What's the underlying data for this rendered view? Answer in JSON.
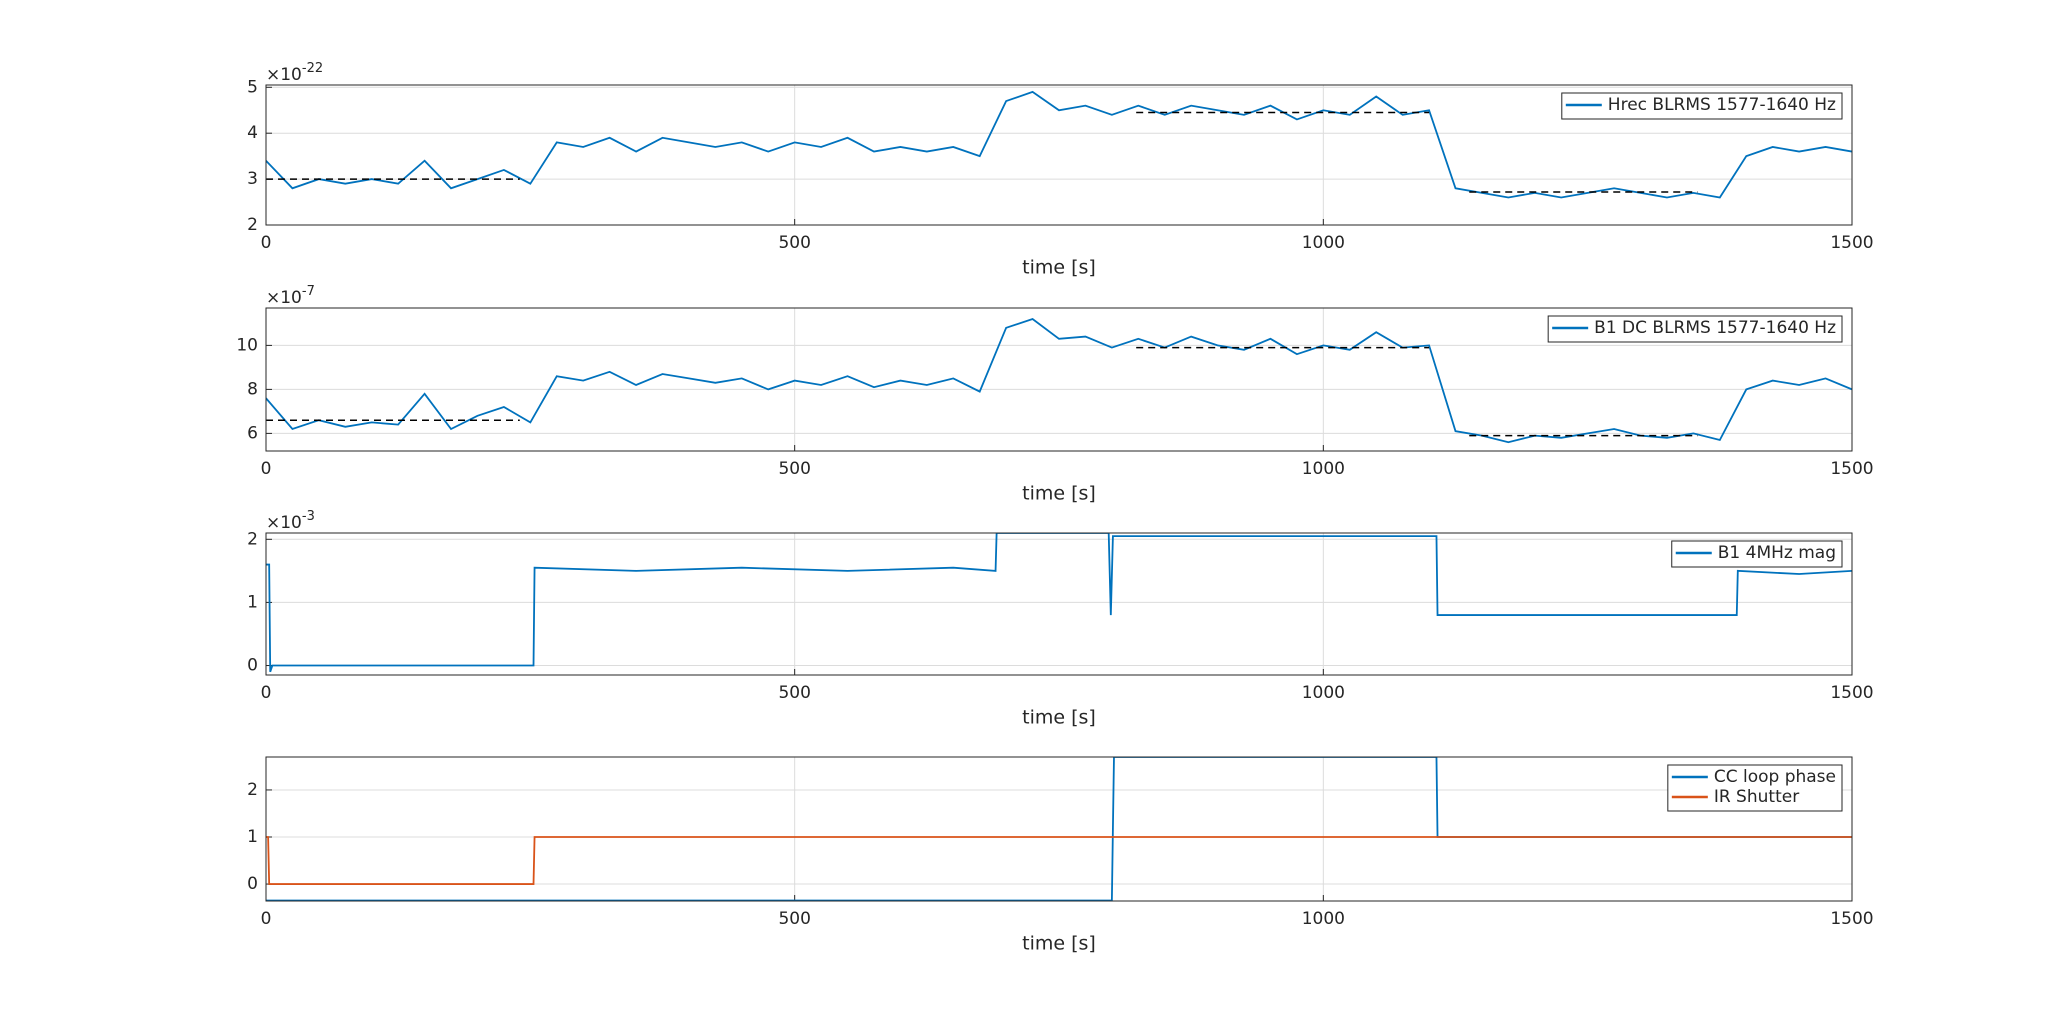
{
  "chart_data": [
    {
      "type": "line",
      "xlabel": "time [s]",
      "xlim": [
        0,
        1500
      ],
      "xticks": [
        0,
        500,
        1000,
        1500
      ],
      "ylim": [
        2,
        5.05
      ],
      "yticks": [
        2,
        3,
        4,
        5
      ],
      "grid": true,
      "legend": "top-right",
      "y_multiplier": {
        "base": "×10",
        "exponent": "-22"
      },
      "series": [
        {
          "name": "Hrec BLRMS 1577-1640 Hz",
          "color": "#0072bd",
          "x": [
            0,
            25,
            50,
            75,
            100,
            125,
            150,
            175,
            200,
            225,
            250,
            275,
            300,
            325,
            350,
            375,
            400,
            425,
            450,
            475,
            500,
            525,
            550,
            575,
            600,
            625,
            650,
            675,
            700,
            725,
            750,
            775,
            800,
            825,
            850,
            875,
            900,
            925,
            950,
            975,
            1000,
            1025,
            1050,
            1075,
            1100,
            1125,
            1150,
            1175,
            1200,
            1225,
            1250,
            1275,
            1300,
            1325,
            1350,
            1375,
            1400,
            1425,
            1450,
            1475,
            1500
          ],
          "values": [
            3.4,
            2.8,
            3.0,
            2.9,
            3.0,
            2.9,
            3.4,
            2.8,
            3.0,
            3.2,
            2.9,
            3.8,
            3.7,
            3.9,
            3.6,
            3.9,
            3.8,
            3.7,
            3.8,
            3.6,
            3.8,
            3.7,
            3.9,
            3.6,
            3.7,
            3.6,
            3.7,
            3.5,
            4.7,
            4.9,
            4.5,
            4.6,
            4.4,
            4.6,
            4.4,
            4.6,
            4.5,
            4.4,
            4.6,
            4.3,
            4.5,
            4.4,
            4.8,
            4.4,
            4.5,
            2.8,
            2.7,
            2.6,
            2.7,
            2.6,
            2.7,
            2.8,
            2.7,
            2.6,
            2.7,
            2.6,
            3.5,
            3.7,
            3.6,
            3.7,
            3.6
          ]
        },
        {
          "color": "#000000",
          "dashed": true,
          "x": [
            0,
            240,
            530,
            823,
            1100,
            1120,
            1138,
            1354
          ],
          "values": [
            3.0,
            3.0,
            null,
            4.45,
            4.45,
            null,
            2.72,
            2.72
          ]
        }
      ]
    },
    {
      "type": "line",
      "xlabel": "time [s]",
      "xlim": [
        0,
        1500
      ],
      "xticks": [
        0,
        500,
        1000,
        1500
      ],
      "ylim": [
        5.2,
        11.7
      ],
      "yticks": [
        6,
        8,
        10
      ],
      "grid": true,
      "legend": "top-right",
      "y_multiplier": {
        "base": "×10",
        "exponent": "-7"
      },
      "series": [
        {
          "name": "B1 DC BLRMS 1577-1640 Hz",
          "color": "#0072bd",
          "x": [
            0,
            25,
            50,
            75,
            100,
            125,
            150,
            175,
            200,
            225,
            250,
            275,
            300,
            325,
            350,
            375,
            400,
            425,
            450,
            475,
            500,
            525,
            550,
            575,
            600,
            625,
            650,
            675,
            700,
            725,
            750,
            775,
            800,
            825,
            850,
            875,
            900,
            925,
            950,
            975,
            1000,
            1025,
            1050,
            1075,
            1100,
            1125,
            1150,
            1175,
            1200,
            1225,
            1250,
            1275,
            1300,
            1325,
            1350,
            1375,
            1400,
            1425,
            1450,
            1475,
            1500
          ],
          "values": [
            7.6,
            6.2,
            6.6,
            6.3,
            6.5,
            6.4,
            7.8,
            6.2,
            6.8,
            7.2,
            6.5,
            8.6,
            8.4,
            8.8,
            8.2,
            8.7,
            8.5,
            8.3,
            8.5,
            8.0,
            8.4,
            8.2,
            8.6,
            8.1,
            8.4,
            8.2,
            8.5,
            7.9,
            10.8,
            11.2,
            10.3,
            10.4,
            9.9,
            10.3,
            9.9,
            10.4,
            10.0,
            9.8,
            10.3,
            9.6,
            10.0,
            9.8,
            10.6,
            9.9,
            10.0,
            6.1,
            5.9,
            5.6,
            5.9,
            5.8,
            6.0,
            6.2,
            5.9,
            5.8,
            6.0,
            5.7,
            8.0,
            8.4,
            8.2,
            8.5,
            8.0
          ]
        },
        {
          "color": "#000000",
          "dashed": true,
          "x": [
            0,
            240,
            530,
            823,
            1100,
            1120,
            1138,
            1354
          ],
          "values": [
            6.6,
            6.6,
            null,
            9.9,
            9.9,
            null,
            5.9,
            5.9
          ]
        }
      ]
    },
    {
      "type": "line",
      "xlabel": "time [s]",
      "xlim": [
        0,
        1500
      ],
      "xticks": [
        0,
        500,
        1000,
        1500
      ],
      "ylim": [
        -0.15,
        2.1
      ],
      "yticks": [
        0,
        1,
        2
      ],
      "grid": true,
      "legend": "top-right",
      "y_multiplier": {
        "base": "×10",
        "exponent": "-3"
      },
      "series": [
        {
          "name": "B1 4MHz mag",
          "color": "#0072bd",
          "x": [
            0,
            3,
            4,
            6,
            253,
            254,
            350,
            450,
            550,
            650,
            690,
            691,
            797,
            799,
            801,
            1107,
            1108,
            1391,
            1392,
            1450,
            1500
          ],
          "values": [
            1.6,
            1.6,
            -0.1,
            0.0,
            0.0,
            1.55,
            1.5,
            1.55,
            1.5,
            1.55,
            1.5,
            2.1,
            2.1,
            0.8,
            2.05,
            2.05,
            0.8,
            0.8,
            1.5,
            1.45,
            1.5
          ]
        }
      ]
    },
    {
      "type": "line",
      "xlabel": "time [s]",
      "xlim": [
        0,
        1500
      ],
      "xticks": [
        0,
        500,
        1000,
        1500
      ],
      "ylim": [
        -0.36,
        2.7
      ],
      "yticks": [
        0,
        1,
        2
      ],
      "grid": true,
      "legend": "top-right",
      "series": [
        {
          "name": "CC loop phase",
          "color": "#0072bd",
          "x": [
            0,
            800,
            801,
            802,
            1107,
            1108,
            1500
          ],
          "values": [
            -0.35,
            -0.35,
            1.2,
            2.7,
            2.7,
            1.0,
            1.0
          ]
        },
        {
          "name": "IR Shutter",
          "color": "#d95319",
          "x": [
            0,
            2,
            3,
            253,
            254,
            1500
          ],
          "values": [
            1,
            1,
            0,
            0,
            1,
            1
          ]
        }
      ]
    }
  ]
}
